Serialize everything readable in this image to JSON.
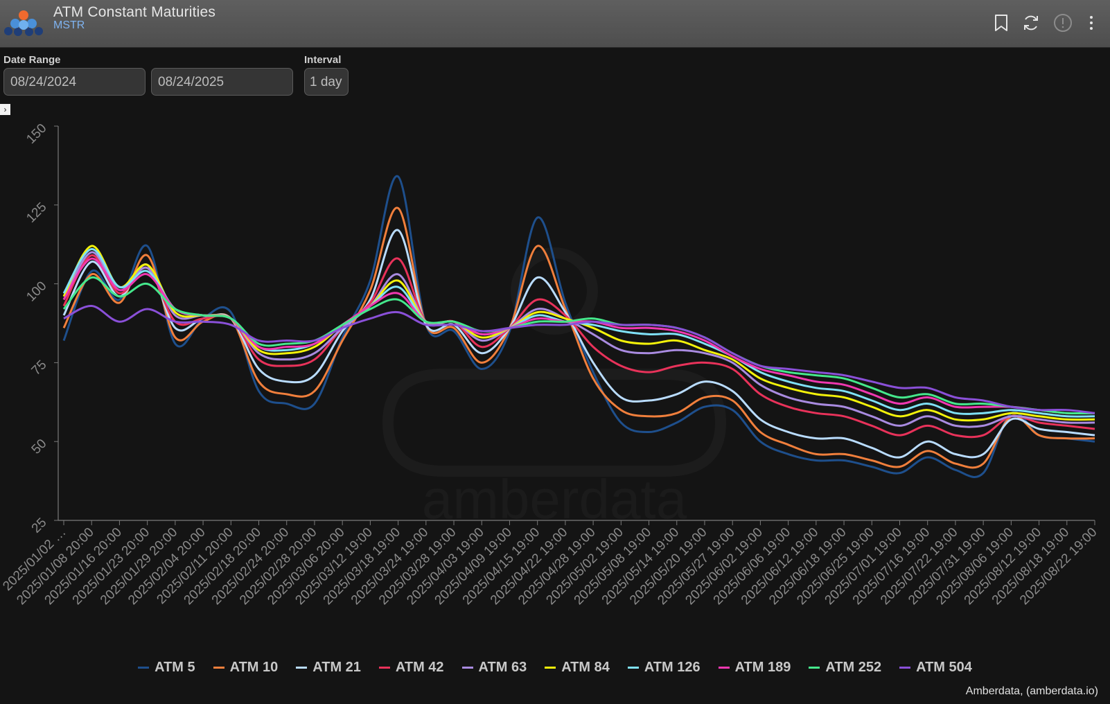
{
  "header": {
    "title": "ATM Constant Maturities",
    "subtitle": "MSTR"
  },
  "controls": {
    "date_range_label": "Date Range",
    "date_start": "08/24/2024",
    "date_end": "08/24/2025",
    "interval_label": "Interval",
    "interval_value": "1 day"
  },
  "watermark": "amberdata",
  "credit": "Amberdata, (amberdata.io)",
  "chart_data": {
    "type": "line",
    "ylim": [
      25,
      150
    ],
    "yticks": [
      25,
      50,
      75,
      100,
      125,
      150
    ],
    "grid": false,
    "legend_position": "bottom",
    "categories": [
      "2025/01/02 …",
      "2025/01/08 20:00",
      "2025/01/16 20:00",
      "2025/01/23 20:00",
      "2025/01/29 20:00",
      "2025/02/04 20:00",
      "2025/02/11 20:00",
      "2025/02/18 20:00",
      "2025/02/24 20:00",
      "2025/02/28 20:00",
      "2025/03/06 20:00",
      "2025/03/12 19:00",
      "2025/03/18 19:00",
      "2025/03/24 19:00",
      "2025/03/28 19:00",
      "2025/04/03 19:00",
      "2025/04/09 19:00",
      "2025/04/15 19:00",
      "2025/04/22 19:00",
      "2025/04/28 19:00",
      "2025/05/02 19:00",
      "2025/05/08 19:00",
      "2025/05/14 19:00",
      "2025/05/20 19:00",
      "2025/05/27 19:00",
      "2025/06/02 19:00",
      "2025/06/06 19:00",
      "2025/06/12 19:00",
      "2025/06/18 19:00",
      "2025/06/25 19:00",
      "2025/07/01 19:00",
      "2025/07/16 19:00",
      "2025/07/22 19:00",
      "2025/07/31 19:00",
      "2025/08/06 19:00",
      "2025/08/12 19:00",
      "2025/08/18 19:00",
      "2025/08/22 19:00"
    ],
    "series": [
      {
        "name": "ATM 5",
        "color": "#1e4f8c",
        "values": [
          82,
          104,
          95,
          112,
          81,
          89,
          91,
          66,
          62,
          62,
          83,
          101,
          134,
          87,
          85,
          73,
          85,
          121,
          94,
          72,
          56,
          53,
          56,
          61,
          60,
          50,
          46,
          44,
          44,
          42,
          40,
          45,
          41,
          40,
          59,
          52,
          51,
          50
        ]
      },
      {
        "name": "ATM 10",
        "color": "#f07f3c",
        "values": [
          86,
          103,
          94,
          109,
          83,
          88,
          89,
          69,
          65,
          66,
          82,
          98,
          124,
          87,
          86,
          75,
          86,
          112,
          92,
          70,
          60,
          58,
          59,
          64,
          63,
          53,
          49,
          46,
          46,
          44,
          42,
          47,
          43,
          43,
          58,
          52,
          51,
          51
        ]
      },
      {
        "name": "ATM 21",
        "color": "#b9dcff",
        "values": [
          90,
          107,
          96,
          106,
          86,
          89,
          89,
          73,
          69,
          71,
          85,
          95,
          117,
          87,
          87,
          78,
          86,
          102,
          91,
          75,
          64,
          63,
          65,
          69,
          66,
          57,
          53,
          51,
          51,
          48,
          45,
          50,
          46,
          46,
          57,
          54,
          53,
          52
        ]
      },
      {
        "name": "ATM 42",
        "color": "#e8325a",
        "values": [
          93,
          109,
          97,
          105,
          88,
          89,
          89,
          76,
          74,
          76,
          86,
          94,
          108,
          88,
          88,
          80,
          86,
          95,
          90,
          80,
          74,
          72,
          74,
          75,
          73,
          65,
          61,
          59,
          58,
          55,
          52,
          55,
          52,
          52,
          58,
          56,
          55,
          54
        ]
      },
      {
        "name": "ATM 63",
        "color": "#a98be0",
        "values": [
          95,
          110,
          98,
          105,
          90,
          90,
          89,
          78,
          76,
          78,
          86,
          93,
          103,
          88,
          88,
          82,
          86,
          92,
          89,
          84,
          79,
          78,
          79,
          78,
          75,
          68,
          64,
          62,
          61,
          58,
          55,
          58,
          55,
          55,
          58,
          57,
          56,
          56
        ]
      },
      {
        "name": "ATM 84",
        "color": "#f3f20a",
        "values": [
          96,
          112,
          99,
          106,
          91,
          90,
          89,
          79,
          78,
          80,
          87,
          93,
          101,
          88,
          88,
          83,
          86,
          91,
          89,
          86,
          82,
          81,
          82,
          79,
          76,
          70,
          67,
          65,
          64,
          61,
          58,
          60,
          57,
          57,
          59,
          58,
          57,
          57
        ]
      },
      {
        "name": "ATM 126",
        "color": "#7fe1f6",
        "values": [
          97,
          111,
          99,
          104,
          92,
          90,
          89,
          80,
          79,
          81,
          87,
          93,
          99,
          88,
          88,
          84,
          86,
          90,
          88,
          87,
          85,
          84,
          84,
          81,
          77,
          72,
          69,
          67,
          66,
          63,
          60,
          62,
          59,
          59,
          60,
          59,
          58,
          58
        ]
      },
      {
        "name": "ATM 189",
        "color": "#f038b0",
        "values": [
          95,
          108,
          98,
          103,
          92,
          90,
          89,
          80,
          80,
          81,
          87,
          93,
          97,
          88,
          88,
          84,
          86,
          89,
          88,
          88,
          86,
          86,
          85,
          82,
          77,
          73,
          71,
          69,
          68,
          65,
          62,
          64,
          61,
          61,
          61,
          60,
          59,
          59
        ]
      },
      {
        "name": "ATM 252",
        "color": "#45e88c",
        "values": [
          92,
          102,
          96,
          100,
          92,
          90,
          89,
          81,
          81,
          82,
          87,
          92,
          95,
          88,
          88,
          85,
          86,
          88,
          88,
          89,
          87,
          87,
          86,
          83,
          78,
          74,
          72,
          71,
          70,
          67,
          64,
          65,
          62,
          62,
          61,
          60,
          59,
          59
        ]
      },
      {
        "name": "ATM 504",
        "color": "#8a50d8",
        "values": [
          89,
          93,
          88,
          92,
          88,
          88,
          87,
          82,
          82,
          82,
          86,
          89,
          91,
          87,
          87,
          85,
          86,
          87,
          87,
          88,
          87,
          87,
          86,
          83,
          78,
          74,
          73,
          72,
          71,
          69,
          67,
          67,
          64,
          63,
          61,
          60,
          60,
          59
        ]
      }
    ]
  }
}
